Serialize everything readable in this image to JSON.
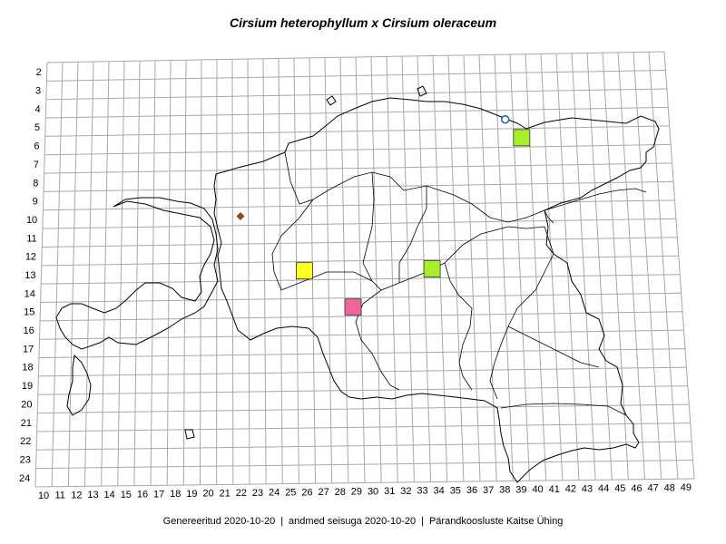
{
  "title": "Cirsium heterophyllum x Cirsium oleraceum",
  "footer": {
    "generated": "Genereeritud 2020-10-20",
    "data_state": "andmed seisuga 2020-10-20",
    "organization": "Pärandkoosluste Kaitse Ühing",
    "separator": "|"
  },
  "grid": {
    "row_labels": [
      "2",
      "3",
      "4",
      "5",
      "6",
      "7",
      "8",
      "9",
      "10",
      "11",
      "12",
      "13",
      "14",
      "15",
      "16",
      "17",
      "18",
      "19",
      "20",
      "21",
      "22",
      "23",
      "24"
    ],
    "col_labels": [
      "10",
      "11",
      "12",
      "13",
      "14",
      "15",
      "16",
      "17",
      "18",
      "19",
      "20",
      "21",
      "22",
      "23",
      "24",
      "25",
      "26",
      "27",
      "28",
      "29",
      "30",
      "31",
      "32",
      "33",
      "34",
      "35",
      "36",
      "37",
      "38",
      "39",
      "40",
      "41",
      "42",
      "43",
      "44",
      "45",
      "46",
      "47",
      "48",
      "49"
    ]
  },
  "markers": [
    {
      "kind": "square",
      "color": "#a6ef2a",
      "col": 40,
      "row": 6
    },
    {
      "kind": "square",
      "color": "#a6ef2a",
      "col": 34,
      "row": 13
    },
    {
      "kind": "square",
      "color": "#ffff22",
      "col": 26,
      "row": 13
    },
    {
      "kind": "square",
      "color": "#f0659a",
      "col": 29,
      "row": 15
    },
    {
      "kind": "circle",
      "color": "#1f5fa0",
      "col": 39,
      "row": 5
    },
    {
      "kind": "diamond",
      "color": "#8b4a1a",
      "col": 22,
      "row": 10
    }
  ]
}
